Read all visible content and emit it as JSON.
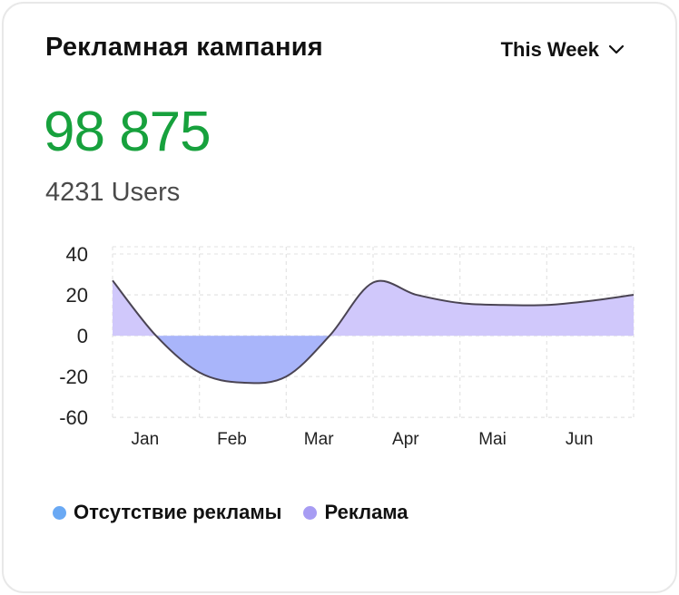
{
  "card": {
    "title": "Рекламная кампания",
    "period": "This Week",
    "big_value": "98 875",
    "users": "4231 Users"
  },
  "colors": {
    "accent_green": "#17a13d",
    "positive_fill": "#d0c8fb",
    "negative_fill": "#a9b5fa",
    "line": "#4a4453",
    "legend_no_ads": "#6aa9f4",
    "legend_ads": "#a79cf3"
  },
  "legend": [
    {
      "label": "Отсутствие рекламы",
      "color": "#6aa9f4"
    },
    {
      "label": "Реклама",
      "color": "#a79cf3"
    }
  ],
  "chart_data": {
    "type": "area",
    "categories": [
      "Jan",
      "Feb",
      "Mar",
      "Apr",
      "Mai",
      "Jun"
    ],
    "x": [
      0,
      0.5,
      1,
      1.5,
      2,
      2.5,
      3,
      3.5,
      4,
      4.5,
      5,
      5.5,
      6
    ],
    "values": [
      27,
      0,
      -18,
      -26,
      -20,
      0,
      26,
      20,
      16,
      15,
      15,
      17,
      20
    ],
    "yticks": [
      40,
      20,
      0,
      -20,
      -60
    ],
    "ylim": [
      -60,
      40
    ],
    "grid": true,
    "legend_position": "bottom-left"
  }
}
